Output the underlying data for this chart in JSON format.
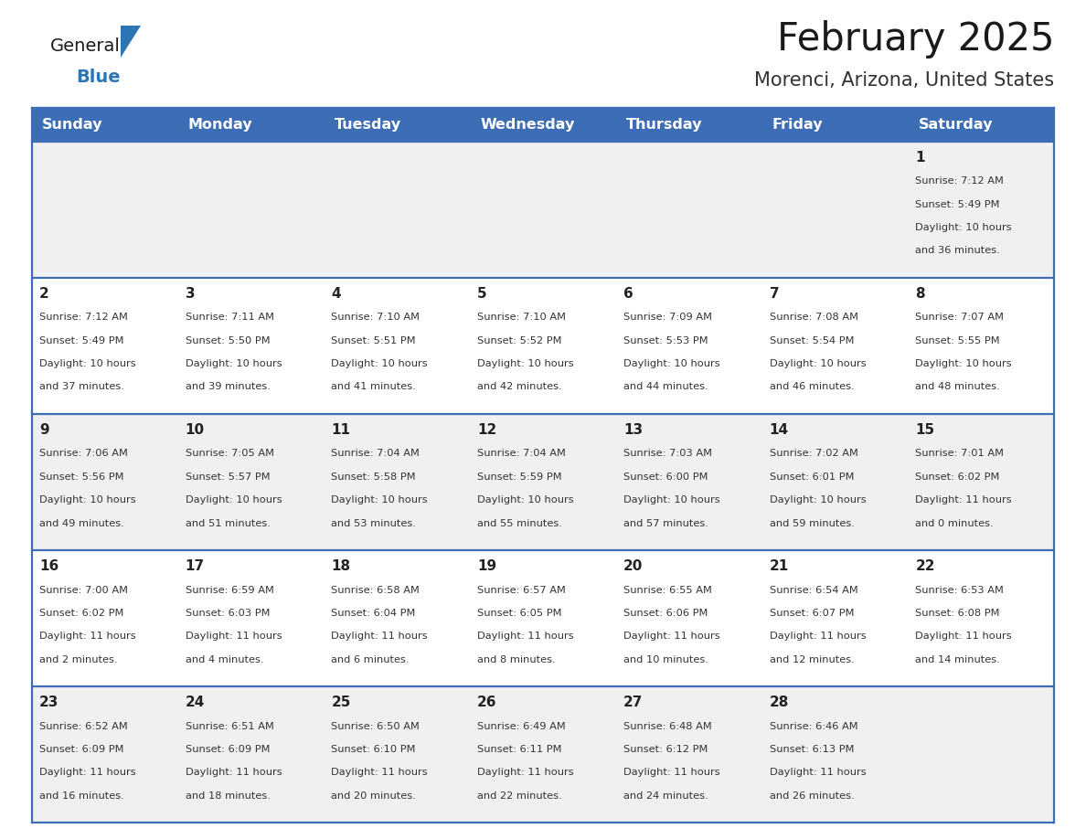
{
  "title": "February 2025",
  "subtitle": "Morenci, Arizona, United States",
  "days_of_week": [
    "Sunday",
    "Monday",
    "Tuesday",
    "Wednesday",
    "Thursday",
    "Friday",
    "Saturday"
  ],
  "header_bg": "#3D6EB5",
  "header_text": "#FFFFFF",
  "cell_bg_odd": "#F0F0F0",
  "cell_bg_even": "#FFFFFF",
  "border_color": "#3D6EB5",
  "title_color": "#1a1a1a",
  "subtitle_color": "#333333",
  "day_num_color": "#222222",
  "cell_text_color": "#333333",
  "logo_general_color": "#1a1a1a",
  "logo_blue_color": "#2E75B6",
  "weeks": [
    [
      {
        "day": null,
        "sunrise": null,
        "sunset": null,
        "daylight": null
      },
      {
        "day": null,
        "sunrise": null,
        "sunset": null,
        "daylight": null
      },
      {
        "day": null,
        "sunrise": null,
        "sunset": null,
        "daylight": null
      },
      {
        "day": null,
        "sunrise": null,
        "sunset": null,
        "daylight": null
      },
      {
        "day": null,
        "sunrise": null,
        "sunset": null,
        "daylight": null
      },
      {
        "day": null,
        "sunrise": null,
        "sunset": null,
        "daylight": null
      },
      {
        "day": 1,
        "sunrise": "7:12 AM",
        "sunset": "5:49 PM",
        "daylight": "10 hours\nand 36 minutes."
      }
    ],
    [
      {
        "day": 2,
        "sunrise": "7:12 AM",
        "sunset": "5:49 PM",
        "daylight": "10 hours\nand 37 minutes."
      },
      {
        "day": 3,
        "sunrise": "7:11 AM",
        "sunset": "5:50 PM",
        "daylight": "10 hours\nand 39 minutes."
      },
      {
        "day": 4,
        "sunrise": "7:10 AM",
        "sunset": "5:51 PM",
        "daylight": "10 hours\nand 41 minutes."
      },
      {
        "day": 5,
        "sunrise": "7:10 AM",
        "sunset": "5:52 PM",
        "daylight": "10 hours\nand 42 minutes."
      },
      {
        "day": 6,
        "sunrise": "7:09 AM",
        "sunset": "5:53 PM",
        "daylight": "10 hours\nand 44 minutes."
      },
      {
        "day": 7,
        "sunrise": "7:08 AM",
        "sunset": "5:54 PM",
        "daylight": "10 hours\nand 46 minutes."
      },
      {
        "day": 8,
        "sunrise": "7:07 AM",
        "sunset": "5:55 PM",
        "daylight": "10 hours\nand 48 minutes."
      }
    ],
    [
      {
        "day": 9,
        "sunrise": "7:06 AM",
        "sunset": "5:56 PM",
        "daylight": "10 hours\nand 49 minutes."
      },
      {
        "day": 10,
        "sunrise": "7:05 AM",
        "sunset": "5:57 PM",
        "daylight": "10 hours\nand 51 minutes."
      },
      {
        "day": 11,
        "sunrise": "7:04 AM",
        "sunset": "5:58 PM",
        "daylight": "10 hours\nand 53 minutes."
      },
      {
        "day": 12,
        "sunrise": "7:04 AM",
        "sunset": "5:59 PM",
        "daylight": "10 hours\nand 55 minutes."
      },
      {
        "day": 13,
        "sunrise": "7:03 AM",
        "sunset": "6:00 PM",
        "daylight": "10 hours\nand 57 minutes."
      },
      {
        "day": 14,
        "sunrise": "7:02 AM",
        "sunset": "6:01 PM",
        "daylight": "10 hours\nand 59 minutes."
      },
      {
        "day": 15,
        "sunrise": "7:01 AM",
        "sunset": "6:02 PM",
        "daylight": "11 hours\nand 0 minutes."
      }
    ],
    [
      {
        "day": 16,
        "sunrise": "7:00 AM",
        "sunset": "6:02 PM",
        "daylight": "11 hours\nand 2 minutes."
      },
      {
        "day": 17,
        "sunrise": "6:59 AM",
        "sunset": "6:03 PM",
        "daylight": "11 hours\nand 4 minutes."
      },
      {
        "day": 18,
        "sunrise": "6:58 AM",
        "sunset": "6:04 PM",
        "daylight": "11 hours\nand 6 minutes."
      },
      {
        "day": 19,
        "sunrise": "6:57 AM",
        "sunset": "6:05 PM",
        "daylight": "11 hours\nand 8 minutes."
      },
      {
        "day": 20,
        "sunrise": "6:55 AM",
        "sunset": "6:06 PM",
        "daylight": "11 hours\nand 10 minutes."
      },
      {
        "day": 21,
        "sunrise": "6:54 AM",
        "sunset": "6:07 PM",
        "daylight": "11 hours\nand 12 minutes."
      },
      {
        "day": 22,
        "sunrise": "6:53 AM",
        "sunset": "6:08 PM",
        "daylight": "11 hours\nand 14 minutes."
      }
    ],
    [
      {
        "day": 23,
        "sunrise": "6:52 AM",
        "sunset": "6:09 PM",
        "daylight": "11 hours\nand 16 minutes."
      },
      {
        "day": 24,
        "sunrise": "6:51 AM",
        "sunset": "6:09 PM",
        "daylight": "11 hours\nand 18 minutes."
      },
      {
        "day": 25,
        "sunrise": "6:50 AM",
        "sunset": "6:10 PM",
        "daylight": "11 hours\nand 20 minutes."
      },
      {
        "day": 26,
        "sunrise": "6:49 AM",
        "sunset": "6:11 PM",
        "daylight": "11 hours\nand 22 minutes."
      },
      {
        "day": 27,
        "sunrise": "6:48 AM",
        "sunset": "6:12 PM",
        "daylight": "11 hours\nand 24 minutes."
      },
      {
        "day": 28,
        "sunrise": "6:46 AM",
        "sunset": "6:13 PM",
        "daylight": "11 hours\nand 26 minutes."
      },
      {
        "day": null,
        "sunrise": null,
        "sunset": null,
        "daylight": null
      }
    ]
  ]
}
